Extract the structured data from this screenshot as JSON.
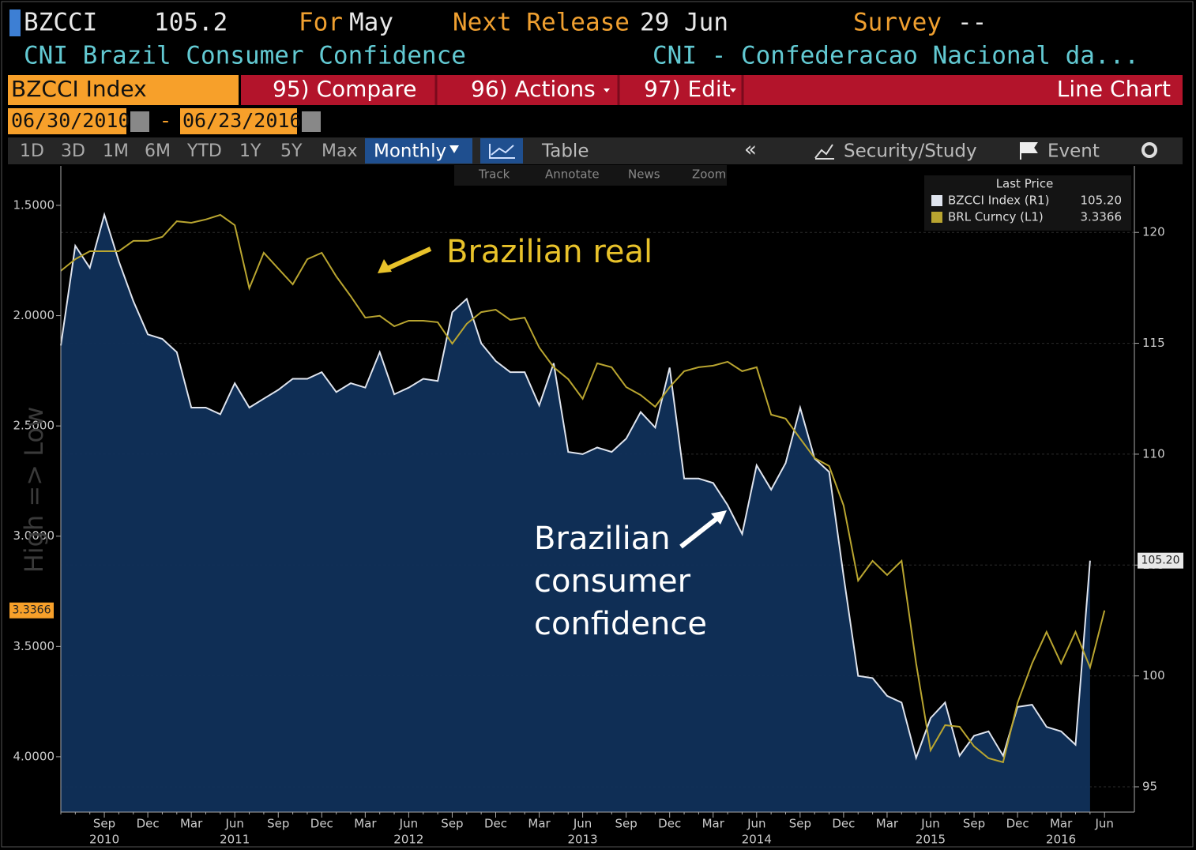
{
  "header": {
    "ticker": "BZCCI",
    "value": "105.2",
    "for_label": "For",
    "for_value": "May",
    "next_label": "Next Release",
    "next_value": "29 Jun",
    "survey_label": "Survey",
    "survey_value": "--",
    "title": "CNI Brazil Consumer Confidence",
    "source": "CNI - Confederacao Nacional da..."
  },
  "toolbar": {
    "index": "BZCCI Index",
    "compare": "95) Compare",
    "actions": "96) Actions",
    "edit": "97) Edit",
    "chart_kind": "Line Chart",
    "start_date": "06/30/2010",
    "end_date": "06/23/2016",
    "ranges": [
      "1D",
      "3D",
      "1M",
      "6M",
      "YTD",
      "1Y",
      "5Y",
      "Max"
    ],
    "frequency": "Monthly",
    "table": "Table",
    "security": "Security/Study",
    "event": "Event",
    "tools": [
      "Track",
      "Annotate",
      "News",
      "Zoom"
    ]
  },
  "chart_data": {
    "type": "line",
    "legend_title": "Last Price",
    "axis_label": "High => Low",
    "annotations": [
      "Brazilian real",
      "Brazilian consumer confidence"
    ],
    "categories": [
      null,
      null,
      null,
      "Sep",
      null,
      null,
      "Dec",
      null,
      null,
      "Mar",
      null,
      null,
      "Jun",
      null,
      null,
      "Sep",
      null,
      null,
      "Dec",
      null,
      null,
      "Mar",
      null,
      null,
      "Jun",
      null,
      null,
      "Sep",
      null,
      null,
      "Dec",
      null,
      null,
      "Mar",
      null,
      null,
      "Jun",
      null,
      null,
      "Sep",
      null,
      null,
      "Dec",
      null,
      null,
      "Mar",
      null,
      null,
      "Jun",
      null,
      null,
      "Sep",
      null,
      null,
      "Dec",
      null,
      null,
      "Mar",
      null,
      null,
      "Jun",
      null,
      null,
      "Sep",
      null,
      null,
      "Dec",
      null,
      null,
      "Mar",
      null,
      null,
      "Jun"
    ],
    "year_labels": [
      null,
      null,
      null,
      "2010",
      null,
      null,
      null,
      null,
      null,
      null,
      null,
      null,
      "2011",
      null,
      null,
      null,
      null,
      null,
      null,
      null,
      null,
      null,
      null,
      null,
      "2012",
      null,
      null,
      null,
      null,
      null,
      null,
      null,
      null,
      null,
      null,
      null,
      "2013",
      null,
      null,
      null,
      null,
      null,
      null,
      null,
      null,
      null,
      null,
      null,
      "2014",
      null,
      null,
      null,
      null,
      null,
      null,
      null,
      null,
      null,
      null,
      null,
      "2015",
      null,
      null,
      null,
      null,
      null,
      null,
      null,
      null,
      "2016",
      null,
      null,
      null
    ],
    "series": [
      {
        "name": "BZCCI Index (R1)",
        "last_label": "105.20",
        "color": "#dfe4ee",
        "fill": "#10305a",
        "axis": "y2",
        "values": [
          114.9,
          119.4,
          118.4,
          120.8,
          118.7,
          116.9,
          115.4,
          115.2,
          114.6,
          112.1,
          112.1,
          111.8,
          113.2,
          112.1,
          112.5,
          112.9,
          113.4,
          113.4,
          113.7,
          112.8,
          113.2,
          113.0,
          114.6,
          112.7,
          113.0,
          113.4,
          113.3,
          116.4,
          117.0,
          115.0,
          114.2,
          113.7,
          113.7,
          112.2,
          114.1,
          110.1,
          110.0,
          110.3,
          110.1,
          110.7,
          111.9,
          111.2,
          113.9,
          108.9,
          108.9,
          108.7,
          107.7,
          106.4,
          109.5,
          108.4,
          109.6,
          112.1,
          109.8,
          109.2,
          104.5,
          100.0,
          99.9,
          99.1,
          98.8,
          96.3,
          98.1,
          98.8,
          96.4,
          97.3,
          97.5,
          96.4,
          98.6,
          98.7,
          97.7,
          97.5,
          96.9,
          105.2,
          null
        ]
      },
      {
        "name": "BRL Curncy (L1)",
        "last_label": "3.3366",
        "color": "#b9a530",
        "axis": "y",
        "values": [
          1.797,
          1.744,
          1.708,
          1.708,
          1.708,
          1.661,
          1.661,
          1.643,
          1.572,
          1.579,
          1.564,
          1.543,
          1.59,
          1.876,
          1.715,
          1.787,
          1.858,
          1.744,
          1.715,
          1.822,
          1.912,
          2.009,
          2.001,
          2.048,
          2.023,
          2.023,
          2.03,
          2.127,
          2.037,
          1.984,
          1.973,
          2.019,
          2.009,
          2.145,
          2.234,
          2.288,
          2.377,
          2.216,
          2.234,
          2.324,
          2.36,
          2.413,
          2.324,
          2.252,
          2.234,
          2.227,
          2.209,
          2.252,
          2.234,
          2.449,
          2.467,
          2.557,
          2.646,
          2.682,
          2.861,
          3.201,
          3.112,
          3.176,
          3.112,
          3.577,
          3.971,
          3.857,
          3.864,
          3.953,
          4.007,
          4.025,
          3.756,
          3.577,
          3.434,
          3.577,
          3.434,
          3.595,
          3.3366
        ]
      }
    ],
    "ylim": [
      4.251,
      1.321
    ],
    "yticks": [
      {
        "value": 1.5,
        "label": "1.5000"
      },
      {
        "value": 2.0,
        "label": "2.0000"
      },
      {
        "value": 2.5,
        "label": "2.5000"
      },
      {
        "value": 3.0,
        "label": "3.0000"
      },
      {
        "value": 3.5,
        "label": "3.5000"
      },
      {
        "value": 4.0,
        "label": "4.0000"
      }
    ],
    "y2lim": [
      93.86,
      123.0
    ],
    "y2ticks": [
      95,
      100,
      105,
      110,
      115,
      120
    ],
    "grid": true
  }
}
